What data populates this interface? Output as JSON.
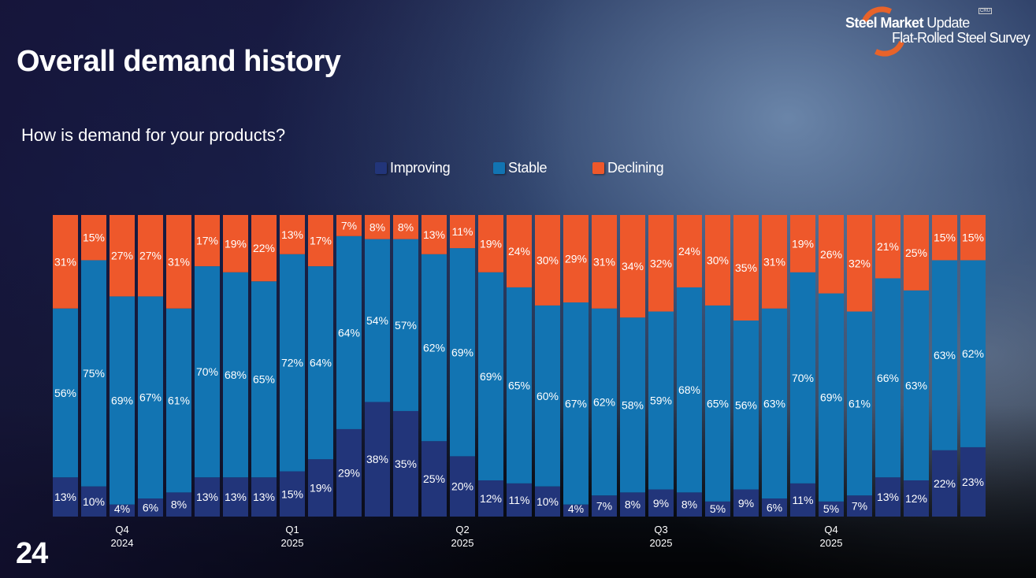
{
  "slide": {
    "title": "Overall demand history",
    "subtitle": "How is demand for your products?",
    "page_number": "24"
  },
  "logo": {
    "line1_bold": "Steel Market",
    "line1_light": " Update",
    "line2": "Flat-Rolled Steel Survey",
    "badge": "CRU"
  },
  "colors": {
    "improving": "#22357a",
    "stable": "#1274b2",
    "declining": "#ee582b"
  },
  "chart_data": {
    "type": "bar",
    "stacked": true,
    "percent_stacked": true,
    "title": "How is demand for your products?",
    "xlabel": "",
    "ylabel": "",
    "ylim": [
      0,
      100
    ],
    "grid": false,
    "legend_position": "top-center",
    "legend": [
      "Improving",
      "Stable",
      "Declining"
    ],
    "quarter_labels": [
      {
        "bar_index": 2,
        "quarter": "Q4",
        "year": "2024"
      },
      {
        "bar_index": 8,
        "quarter": "Q1",
        "year": "2025"
      },
      {
        "bar_index": 14,
        "quarter": "Q2",
        "year": "2025"
      },
      {
        "bar_index": 21,
        "quarter": "Q3",
        "year": "2025"
      },
      {
        "bar_index": 27,
        "quarter": "Q4",
        "year": "2025"
      }
    ],
    "series": [
      {
        "name": "Improving",
        "color": "#22357a",
        "values": [
          13,
          10,
          4,
          6,
          8,
          13,
          13,
          13,
          15,
          19,
          29,
          38,
          35,
          25,
          20,
          12,
          11,
          10,
          4,
          7,
          8,
          9,
          8,
          5,
          9,
          6,
          11,
          5,
          7,
          13,
          12,
          22,
          23
        ]
      },
      {
        "name": "Stable",
        "color": "#1274b2",
        "values": [
          56,
          75,
          69,
          67,
          61,
          70,
          68,
          65,
          72,
          64,
          64,
          54,
          57,
          62,
          69,
          69,
          65,
          60,
          67,
          62,
          58,
          59,
          68,
          65,
          56,
          63,
          70,
          69,
          61,
          66,
          63,
          63,
          62
        ]
      },
      {
        "name": "Declining",
        "color": "#ee582b",
        "values": [
          31,
          15,
          27,
          27,
          31,
          17,
          19,
          22,
          13,
          17,
          7,
          8,
          8,
          13,
          11,
          19,
          24,
          30,
          29,
          31,
          34,
          32,
          24,
          30,
          35,
          31,
          19,
          26,
          32,
          21,
          25,
          15,
          15
        ]
      }
    ]
  }
}
